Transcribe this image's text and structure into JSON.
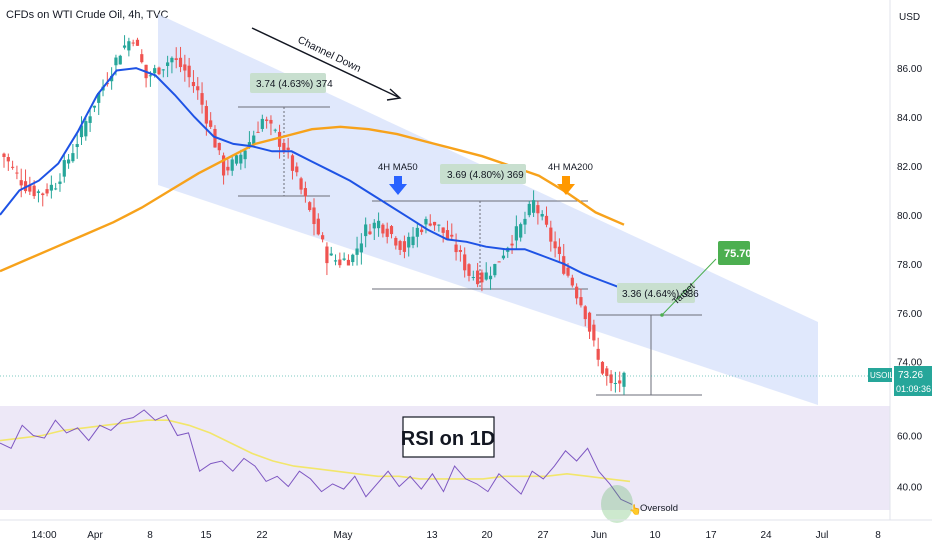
{
  "header": {
    "title": "CFDs on WTI Crude Oil, 4h, TVC",
    "currency": "USD"
  },
  "price_axis": {
    "ticks": [
      "86.00",
      "84.00",
      "82.00",
      "80.00",
      "78.00",
      "76.00",
      "74.00"
    ]
  },
  "rsi_axis": {
    "ticks": [
      "60.00",
      "40.00"
    ]
  },
  "time_axis": {
    "labels": [
      "14:00",
      "Apr",
      "8",
      "15",
      "22",
      "May",
      "13",
      "20",
      "27",
      "Jun",
      "10",
      "17",
      "24",
      "Jul",
      "8"
    ]
  },
  "price_badge": {
    "symbol": "USOIL",
    "price": "73.26",
    "countdown": "01:09:36"
  },
  "annotations": {
    "channel": "Channel Down",
    "ma50": "4H MA50",
    "ma200": "4H MA200",
    "measure1": "3.74 (4.63%) 374",
    "measure2": "3.69 (4.80%) 369",
    "measure3": "3.36 (4.64%) 336",
    "target_word": "Target",
    "target_value": "75.70",
    "rsi_title": "RSI on 1D",
    "oversold": "Oversold"
  },
  "colors": {
    "ma50": "#1e53e5",
    "ma200": "#f7a21b",
    "up": "#26a69a",
    "down": "#ef5350",
    "channel": "#d6e0fb",
    "rsi": "#7e57c2",
    "rsi_ma": "#f2e66b",
    "target": "#4caf50",
    "arrow_ma50": "#2962ff",
    "arrow_ma200": "#ff9800"
  },
  "chart_data": {
    "type": "line",
    "title": "CFDs on WTI Crude Oil, 4h, TVC",
    "y_range": [
      72.6,
      87.8
    ],
    "x_labels": [
      "14:00",
      "Apr",
      "8",
      "15",
      "22",
      "May",
      "13",
      "20",
      "27",
      "Jun",
      "10",
      "17",
      "24",
      "Jul",
      "8"
    ],
    "series": [
      {
        "name": "Price (close, approx.)",
        "values": [
          82.4,
          81.6,
          81.0,
          80.9,
          81.3,
          82.3,
          83.4,
          84.6,
          85.6,
          86.7,
          87.3,
          85.6,
          86.0,
          86.4,
          85.9,
          85.0,
          83.5,
          81.8,
          82.2,
          83.0,
          83.9,
          83.3,
          82.4,
          81.0,
          79.7,
          78.3,
          78.1,
          78.3,
          79.4,
          79.7,
          79.2,
          78.6,
          79.4,
          79.8,
          79.3,
          78.6,
          77.6,
          77.4,
          77.9,
          78.8,
          79.5,
          80.5,
          79.4,
          78.2,
          77.2,
          76.0,
          74.0,
          73.0,
          73.26
        ]
      },
      {
        "name": "4H MA50",
        "values": [
          80.0,
          81.0,
          81.4,
          82.1,
          83.4,
          84.9,
          85.9,
          86.0,
          85.7,
          84.9,
          84.0,
          83.2,
          82.9,
          82.8,
          82.6,
          82.6,
          82.2,
          81.8,
          81.4,
          80.9,
          80.4,
          79.9,
          79.4,
          79.0,
          78.9,
          78.7,
          78.6,
          78.6,
          78.3,
          78.0,
          77.6,
          77.3,
          77.0
        ]
      },
      {
        "name": "4H MA200",
        "values": [
          77.7,
          78.2,
          78.7,
          79.2,
          79.7,
          80.3,
          81.0,
          81.7,
          82.3,
          82.9,
          83.2,
          83.5,
          83.6,
          83.5,
          83.3,
          83.0,
          82.7,
          82.4,
          82.0,
          81.6,
          80.9,
          80.1,
          79.6
        ]
      }
    ],
    "rsi": {
      "name": "RSI on 1D",
      "y_range": [
        30,
        70
      ],
      "ticks": [
        40,
        60
      ],
      "oversold_label": "Oversold"
    },
    "target": 75.7
  }
}
